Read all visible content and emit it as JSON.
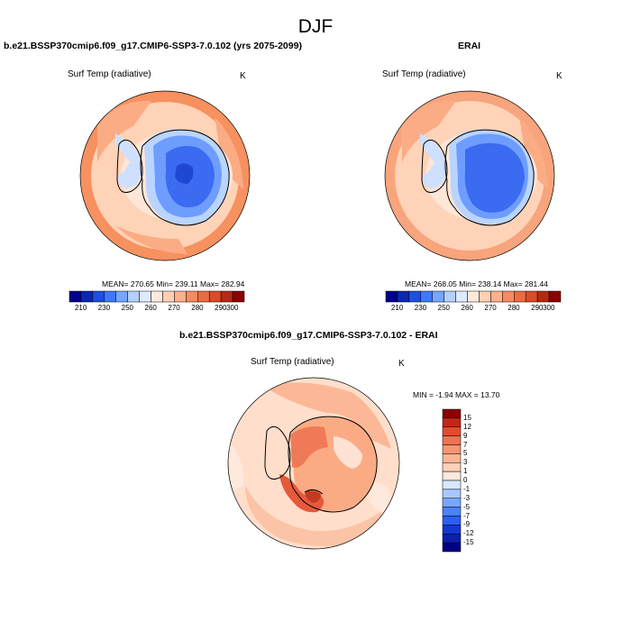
{
  "figure": {
    "title": "DJF"
  },
  "panels": {
    "model": {
      "title": "b.e21.BSSP370cmip6.f09_g17.CMIP6-SSP3-7.0.102 (yrs 2075-2099)",
      "variable": "Surf Temp (radiative)",
      "units": "K",
      "stats": "MEAN= 270.65  Min= 239.11  Max= 282.94"
    },
    "obs": {
      "title": "ERAI",
      "variable": "Surf Temp (radiative)",
      "units": "K",
      "stats": "MEAN= 268.05  Min= 238.14  Max= 281.44"
    },
    "diff": {
      "title": "b.e21.BSSP370cmip6.f09_g17.CMIP6-SSP3-7.0.102 - ERAI",
      "variable": "Surf Temp (radiative)",
      "units": "K",
      "stats": "MIN =  -1.94 MAX =  13.70"
    }
  },
  "colorbars": {
    "abs": {
      "colors": [
        "#00008b",
        "#0a26b4",
        "#1f4fe0",
        "#3f79ff",
        "#78a6ff",
        "#b4d0ff",
        "#deebff",
        "#ffe9dc",
        "#ffd0b4",
        "#fdb08c",
        "#f78a63",
        "#ee6a43",
        "#dc4a2a",
        "#b82814",
        "#8b0000"
      ],
      "labels": [
        "210",
        "230",
        "250",
        "260",
        "270",
        "280",
        "290",
        "300"
      ]
    },
    "diff": {
      "colors": [
        "#000080",
        "#0a1fae",
        "#1438d0",
        "#2a5ff0",
        "#4a82ff",
        "#78a6ff",
        "#a8c8ff",
        "#d8e8ff",
        "#ffe8dc",
        "#ffd0b8",
        "#fdb593",
        "#f89570",
        "#f07252",
        "#e24b2e",
        "#c62613",
        "#8b0000"
      ],
      "labels": [
        "15",
        "12",
        "9",
        "7",
        "5",
        "3",
        "1",
        "0",
        "-1",
        "-3",
        "-5",
        "-7",
        "-9",
        "-12",
        "-15"
      ]
    }
  }
}
